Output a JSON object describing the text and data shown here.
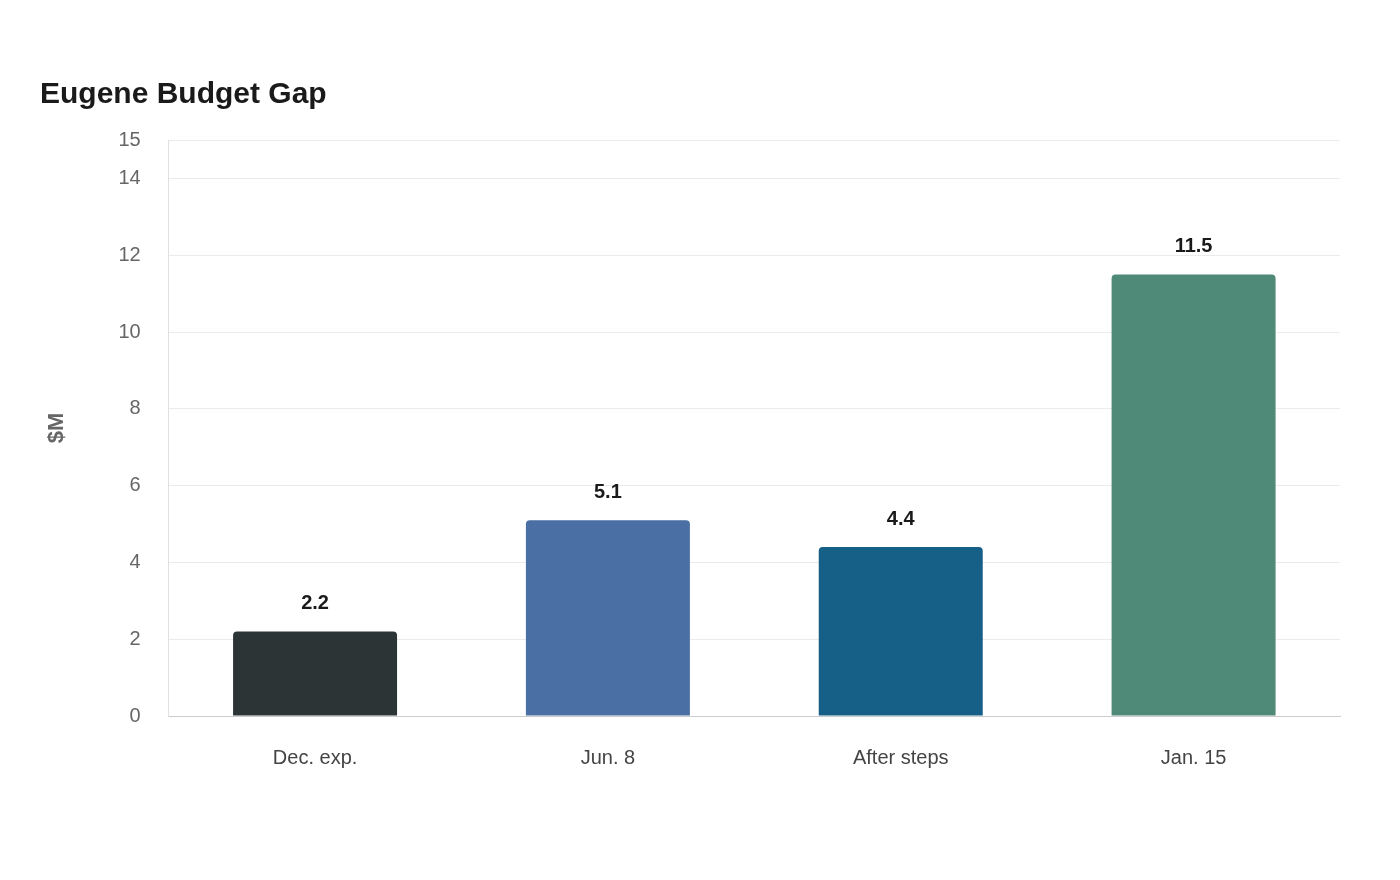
{
  "chart_data": {
    "type": "bar",
    "title": "Eugene Budget Gap",
    "ylabel": "$M",
    "categories": [
      "Dec. exp.",
      "Jun. 8",
      "After steps",
      "Jan. 15"
    ],
    "values": [
      2.2,
      5.1,
      4.4,
      11.5
    ],
    "colors": [
      "#2d3436",
      "#4a6fa5",
      "#166088",
      "#4f8a78"
    ],
    "ylim": [
      0,
      15
    ],
    "yticks": [
      0,
      2,
      4,
      6,
      8,
      10,
      12,
      14,
      15
    ],
    "grid": "y",
    "data_labels": true
  }
}
